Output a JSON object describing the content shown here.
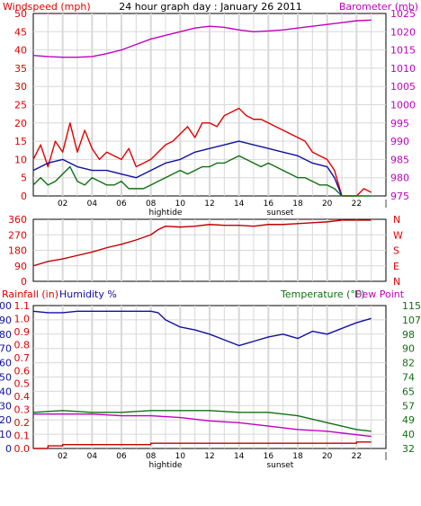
{
  "colors": {
    "red": "#e00000",
    "blue": "#1010a0",
    "green": "#107010",
    "magenta": "#c000c0",
    "grid": "#d8d8d8",
    "darkred": "#c00000"
  },
  "chart_data": [
    {
      "type": "line",
      "title": "24 hour graph day : January 26 2011",
      "ylabel_left": "Windspeed (mph)",
      "ylabel_right": "Barometer (mb)",
      "yticks_left": [
        "0",
        "5",
        "10",
        "15",
        "20",
        "25",
        "30",
        "35",
        "40",
        "45",
        "50"
      ],
      "yticks_right": [
        "975",
        "980",
        "985",
        "990",
        "995",
        "1000",
        "1005",
        "1010",
        "1015",
        "1020",
        "1025"
      ],
      "x_ticks": [
        "02",
        "04",
        "06",
        "08",
        "10",
        "12",
        "14",
        "16",
        "18",
        "20",
        "22"
      ],
      "x_range": [
        0,
        24
      ],
      "ylim_left": [
        0,
        50
      ],
      "ylim_right": [
        975,
        1025
      ],
      "annotations": [
        {
          "x": 9.0,
          "label": "hightide"
        },
        {
          "x": 16.8,
          "label": "sunset"
        }
      ],
      "series": [
        {
          "name": "Windspeed (mph)",
          "color": "#e00000",
          "axis": "left",
          "x": [
            0,
            0.5,
            1,
            1.5,
            2,
            2.5,
            3,
            3.5,
            4,
            4.5,
            5,
            5.5,
            6,
            6.5,
            7,
            7.5,
            8,
            8.5,
            9,
            9.5,
            10,
            10.5,
            11,
            11.5,
            12,
            12.5,
            13,
            13.5,
            14,
            14.5,
            15,
            15.5,
            16,
            16.5,
            17,
            17.5,
            18,
            18.5,
            19,
            19.5,
            20,
            20.5,
            21,
            21.5,
            22,
            22.5,
            23
          ],
          "values": [
            10,
            14,
            8,
            15,
            12,
            20,
            12,
            18,
            13,
            10,
            12,
            11,
            10,
            13,
            8,
            9,
            10,
            12,
            14,
            15,
            17,
            19,
            16,
            20,
            20,
            19,
            22,
            23,
            24,
            22,
            21,
            21,
            20,
            19,
            18,
            17,
            16,
            15,
            12,
            11,
            10,
            7,
            0,
            0,
            0,
            2,
            1
          ]
        },
        {
          "name": "",
          "color": "#1010a0",
          "axis": "left",
          "x": [
            0,
            1,
            2,
            3,
            4,
            5,
            6,
            7,
            8,
            9,
            10,
            11,
            12,
            13,
            14,
            15,
            16,
            17,
            18,
            19,
            20,
            20.5,
            21
          ],
          "values": [
            7,
            9,
            10,
            8,
            7,
            7,
            6,
            5,
            7,
            9,
            10,
            12,
            13,
            14,
            15,
            14,
            13,
            12,
            11,
            9,
            8,
            5,
            0
          ]
        },
        {
          "name": "",
          "color": "#107010",
          "axis": "left",
          "x": [
            0,
            0.5,
            1,
            1.5,
            2,
            2.5,
            3,
            3.5,
            4,
            4.5,
            5,
            5.5,
            6,
            6.5,
            7,
            7.5,
            8,
            8.5,
            9,
            9.5,
            10,
            10.5,
            11,
            11.5,
            12,
            12.5,
            13,
            13.5,
            14,
            14.5,
            15,
            15.5,
            16,
            16.5,
            17,
            17.5,
            18,
            18.5,
            19,
            19.5,
            20,
            20.5,
            21,
            21.5,
            22,
            22.5,
            23
          ],
          "values": [
            3,
            5,
            3,
            4,
            6,
            8,
            4,
            3,
            5,
            4,
            3,
            3,
            4,
            2,
            2,
            2,
            3,
            4,
            5,
            6,
            7,
            6,
            7,
            8,
            8,
            9,
            9,
            10,
            11,
            10,
            9,
            8,
            9,
            8,
            7,
            6,
            5,
            5,
            4,
            3,
            3,
            2,
            0,
            0,
            0,
            0,
            0
          ]
        },
        {
          "name": "Barometer (mb)",
          "color": "#c000c0",
          "axis": "right",
          "x": [
            0,
            1,
            2,
            3,
            4,
            5,
            6,
            7,
            8,
            9,
            10,
            11,
            12,
            13,
            14,
            15,
            16,
            17,
            18,
            19,
            20,
            21,
            22,
            23
          ],
          "values": [
            1013.5,
            1013.2,
            1013,
            1013,
            1013.2,
            1014,
            1015,
            1016.5,
            1018,
            1019,
            1020,
            1021,
            1021.5,
            1021.2,
            1020.5,
            1020,
            1020.2,
            1020.5,
            1021,
            1021.5,
            1022,
            1022.5,
            1023,
            1023.2
          ]
        }
      ]
    },
    {
      "type": "line",
      "title": "",
      "yticks_left": [
        "0",
        "90",
        "180",
        "270",
        "360"
      ],
      "right_labels": [
        "N",
        "W",
        "S",
        "E",
        "N"
      ],
      "ylim": [
        0,
        360
      ],
      "x_range": [
        0,
        24
      ],
      "series": [
        {
          "name": "",
          "color": "#c00000",
          "x": [
            0,
            1,
            2,
            3,
            4,
            5,
            6,
            7,
            8,
            8.5,
            9,
            10,
            11,
            12,
            13,
            14,
            15,
            16,
            17,
            18,
            19,
            20,
            21,
            22,
            23
          ],
          "values": [
            90,
            115,
            130,
            150,
            170,
            195,
            215,
            240,
            270,
            300,
            320,
            315,
            320,
            330,
            325,
            325,
            320,
            330,
            330,
            335,
            340,
            345,
            355,
            355,
            355
          ]
        }
      ]
    },
    {
      "type": "line",
      "title": "",
      "ylabel_rain": "Rainfall (in)",
      "ylabel_humidity": "Humidity %",
      "ylabel_temp": "Temperature (°F)",
      "ylabel_dew": "Dew Point",
      "yticks_humidity": [
        "0",
        "10",
        "20",
        "30",
        "40",
        "50",
        "60",
        "70",
        "80",
        "90",
        "100"
      ],
      "yticks_rain": [
        "0.0",
        "0.1",
        "0.2",
        "0.3",
        "0.4",
        "0.5",
        "0.6",
        "0.7",
        "0.8",
        "0.9",
        "1.0",
        "1.1"
      ],
      "yticks_temp": [
        "32",
        "40",
        "49",
        "57",
        "65",
        "74",
        "82",
        "90",
        "98",
        "107",
        "115"
      ],
      "x_ticks": [
        "02",
        "04",
        "06",
        "08",
        "10",
        "12",
        "14",
        "16",
        "18",
        "20",
        "22"
      ],
      "x_range": [
        0,
        24
      ],
      "ylim_humidity": [
        0,
        100
      ],
      "annotations": [
        {
          "x": 9.0,
          "label": "hightide"
        },
        {
          "x": 16.8,
          "label": "sunset"
        }
      ],
      "series": [
        {
          "name": "Humidity %",
          "color": "#1010a0",
          "x": [
            0,
            1,
            2,
            3,
            4,
            5,
            6,
            7,
            8,
            8.5,
            9,
            10,
            11,
            12,
            13,
            14,
            15,
            16,
            17,
            18,
            19,
            20,
            21,
            22,
            23
          ],
          "values": [
            96,
            95,
            95,
            96,
            96,
            96,
            96,
            96,
            96,
            95,
            90,
            85,
            83,
            80,
            76,
            72,
            75,
            78,
            80,
            77,
            82,
            80,
            84,
            88,
            91
          ]
        },
        {
          "name": "Temperature (°F)",
          "color": "#107010",
          "x": [
            0,
            2,
            4,
            6,
            8,
            10,
            12,
            14,
            16,
            18,
            19,
            20,
            21,
            22,
            23
          ],
          "values": [
            53,
            54,
            53,
            53,
            54,
            54,
            54,
            53,
            53,
            51,
            49,
            47,
            45,
            43,
            42
          ]
        },
        {
          "name": "Dew Point",
          "color": "#c000c0",
          "x": [
            0,
            2,
            4,
            6,
            8,
            10,
            12,
            14,
            16,
            18,
            20,
            21,
            22,
            23
          ],
          "values": [
            52,
            52,
            52,
            51,
            51,
            50,
            48,
            47,
            45,
            43,
            42,
            41,
            40,
            39
          ]
        },
        {
          "name": "Rainfall (in)",
          "color": "#c00000",
          "x": [
            0,
            1,
            2,
            8,
            10,
            12,
            14,
            16,
            18,
            20,
            22,
            23
          ],
          "values": [
            0,
            0.02,
            0.03,
            0.04,
            0.04,
            0.04,
            0.04,
            0.04,
            0.04,
            0.04,
            0.05,
            0.05
          ]
        }
      ]
    }
  ]
}
